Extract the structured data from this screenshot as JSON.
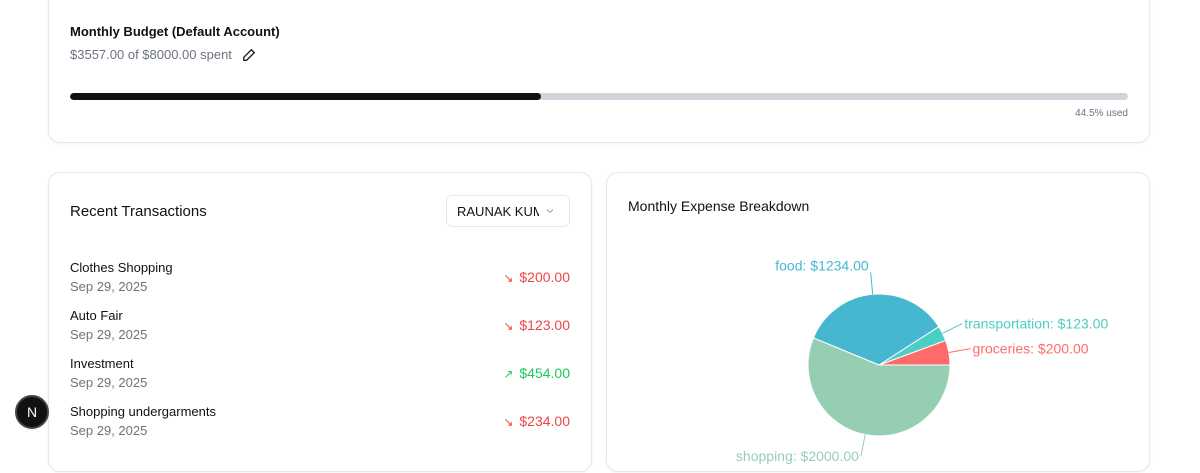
{
  "budget": {
    "title": "Monthly Budget (Default Account)",
    "spent_text": "$3557.00 of $8000.00 spent",
    "used_label": "44.5% used",
    "used_percent": 44.5,
    "edit_icon": "pencil-icon"
  },
  "transactions": {
    "title": "Recent Transactions",
    "account_select": "RAUNAK KUMAR",
    "items": [
      {
        "name": "Clothes Shopping",
        "date": "Sep 29, 2025",
        "amount": "$200.00",
        "type": "expense"
      },
      {
        "name": "Auto Fair",
        "date": "Sep 29, 2025",
        "amount": "$123.00",
        "type": "expense"
      },
      {
        "name": "Investment",
        "date": "Sep 29, 2025",
        "amount": "$454.00",
        "type": "income"
      },
      {
        "name": "Shopping undergarments",
        "date": "Sep 29, 2025",
        "amount": "$234.00",
        "type": "expense"
      }
    ]
  },
  "colors": {
    "expense": "#ef4444",
    "income": "#22c55e"
  },
  "chart_data": {
    "type": "pie",
    "title": "Monthly Expense Breakdown",
    "slices": [
      {
        "name": "groceries",
        "value": 200,
        "label": "groceries: $200.00",
        "color": "#FF6B6B"
      },
      {
        "name": "transportation",
        "value": 123,
        "label": "transportation: $123.00",
        "color": "#4ECDC4"
      },
      {
        "name": "food",
        "value": 1234,
        "label": "food: $1234.00",
        "color": "#45B7D1"
      },
      {
        "name": "shopping",
        "value": 2000,
        "label": "shopping: $2000.00",
        "color": "#96CEB4"
      }
    ]
  },
  "badge": {
    "label": "N"
  }
}
